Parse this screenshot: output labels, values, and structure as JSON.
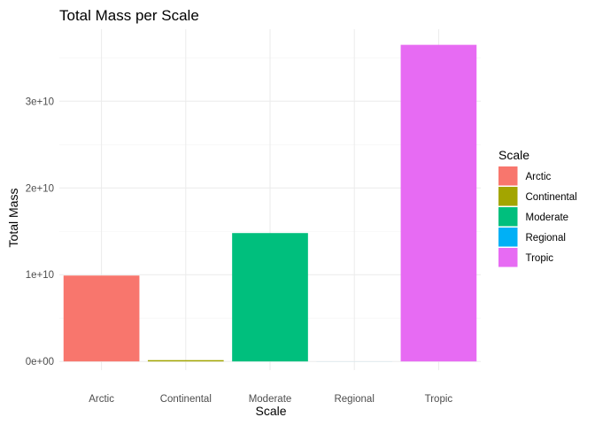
{
  "chart_data": {
    "type": "bar",
    "title": "Total Mass per Scale",
    "xlabel": "Scale",
    "ylabel": "Total Mass",
    "categories": [
      "Arctic",
      "Continental",
      "Moderate",
      "Regional",
      "Tropic"
    ],
    "values": [
      9900000000,
      150000000,
      14800000000,
      5000000,
      36500000000
    ],
    "colors": [
      "#F8766D",
      "#A3A500",
      "#00BF7D",
      "#00B0F6",
      "#E76BF3"
    ],
    "ylim": [
      -1000000000,
      38300000000
    ],
    "yticks": [
      0,
      10000000000,
      20000000000,
      30000000000
    ],
    "ytick_labels": [
      "0e+00",
      "1e+10",
      "2e+10",
      "3e+10"
    ],
    "grid": true,
    "legend": {
      "title": "Scale",
      "position": "right",
      "entries": [
        "Arctic",
        "Continental",
        "Moderate",
        "Regional",
        "Tropic"
      ]
    }
  }
}
